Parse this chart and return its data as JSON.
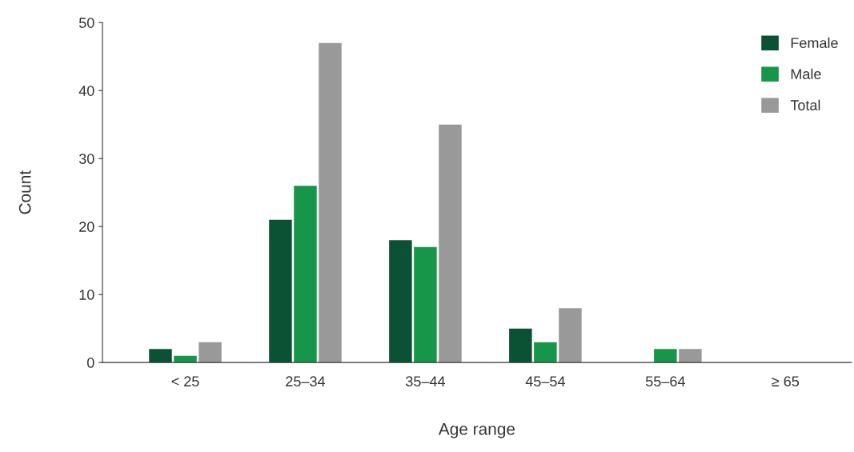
{
  "chart_data": {
    "type": "bar",
    "xlabel": "Age range",
    "ylabel": "Count",
    "categories": [
      "< 25",
      "25–34",
      "35–44",
      "45–54",
      "55–64",
      "≥ 65"
    ],
    "series": [
      {
        "name": "Female",
        "color": "#0b5134",
        "values": [
          2,
          21,
          18,
          5,
          0,
          0
        ]
      },
      {
        "name": "Male",
        "color": "#17964a",
        "values": [
          1,
          26,
          17,
          3,
          2,
          0
        ]
      },
      {
        "name": "Total",
        "color": "#999999",
        "values": [
          3,
          47,
          35,
          8,
          2,
          0
        ]
      }
    ],
    "ylim": [
      0,
      50
    ],
    "yticks": [
      0,
      10,
      20,
      30,
      40,
      50
    ],
    "grid": false,
    "legend": "top right"
  }
}
